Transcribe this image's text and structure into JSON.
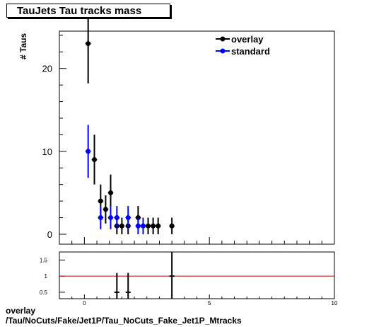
{
  "title": "TauJets Tau tracks mass",
  "footer": {
    "line1": "overlay",
    "line2": "/Tau/NoCuts/Fake/Jet1P/Tau_NoCuts_Fake_Jet1P_Mtracks"
  },
  "colors": {
    "overlay": "#000000",
    "standard": "#0000ff",
    "ratio_line": "#cc0000"
  },
  "chart_data": [
    {
      "type": "scatter",
      "ylabel": "# Taus",
      "xlim": [
        -1,
        10
      ],
      "ylim": [
        -1.2,
        24.5
      ],
      "x_ticks": [
        0,
        5,
        10
      ],
      "y_ticks": [
        0,
        10,
        20
      ],
      "legend_position": "top-right",
      "series": [
        {
          "name": "overlay",
          "points": [
            {
              "x": 0.15,
              "y": 23,
              "err": 4.8
            },
            {
              "x": 0.4,
              "y": 9,
              "err": 3
            },
            {
              "x": 0.65,
              "y": 4,
              "err": 2
            },
            {
              "x": 0.85,
              "y": 3,
              "err": 1.7
            },
            {
              "x": 1.05,
              "y": 5,
              "err": 2.2
            },
            {
              "x": 1.3,
              "y": 1,
              "err": 1
            },
            {
              "x": 1.5,
              "y": 1,
              "err": 1
            },
            {
              "x": 1.75,
              "y": 1,
              "err": 1
            },
            {
              "x": 2.15,
              "y": 2,
              "err": 1.4
            },
            {
              "x": 2.55,
              "y": 1,
              "err": 1
            },
            {
              "x": 2.75,
              "y": 1,
              "err": 1
            },
            {
              "x": 2.95,
              "y": 1,
              "err": 1
            },
            {
              "x": 3.5,
              "y": 1,
              "err": 1
            }
          ]
        },
        {
          "name": "standard",
          "points": [
            {
              "x": 0.15,
              "y": 10,
              "err": 3.2
            },
            {
              "x": 0.65,
              "y": 2,
              "err": 1.4
            },
            {
              "x": 1.05,
              "y": 2,
              "err": 1.4
            },
            {
              "x": 1.3,
              "y": 2,
              "err": 1.4
            },
            {
              "x": 1.75,
              "y": 2,
              "err": 1.4
            },
            {
              "x": 2.15,
              "y": 1,
              "err": 1
            },
            {
              "x": 2.35,
              "y": 1,
              "err": 1
            }
          ]
        }
      ]
    },
    {
      "type": "scatter",
      "xlim": [
        -1,
        10
      ],
      "ylim": [
        0.3,
        1.75
      ],
      "x_ticks": [
        0,
        5,
        10
      ],
      "y_ticks": [
        0.5,
        1,
        1.5
      ],
      "reference_line": 1,
      "points": [
        {
          "x": 1.3,
          "y": 0.5,
          "err": 0.6,
          "xerr": 0.1
        },
        {
          "x": 1.75,
          "y": 0.5,
          "err": 0.6,
          "xerr": 0.1
        },
        {
          "x": 3.5,
          "y": 1,
          "err": 0.85,
          "xerr": 0.1
        }
      ]
    }
  ]
}
